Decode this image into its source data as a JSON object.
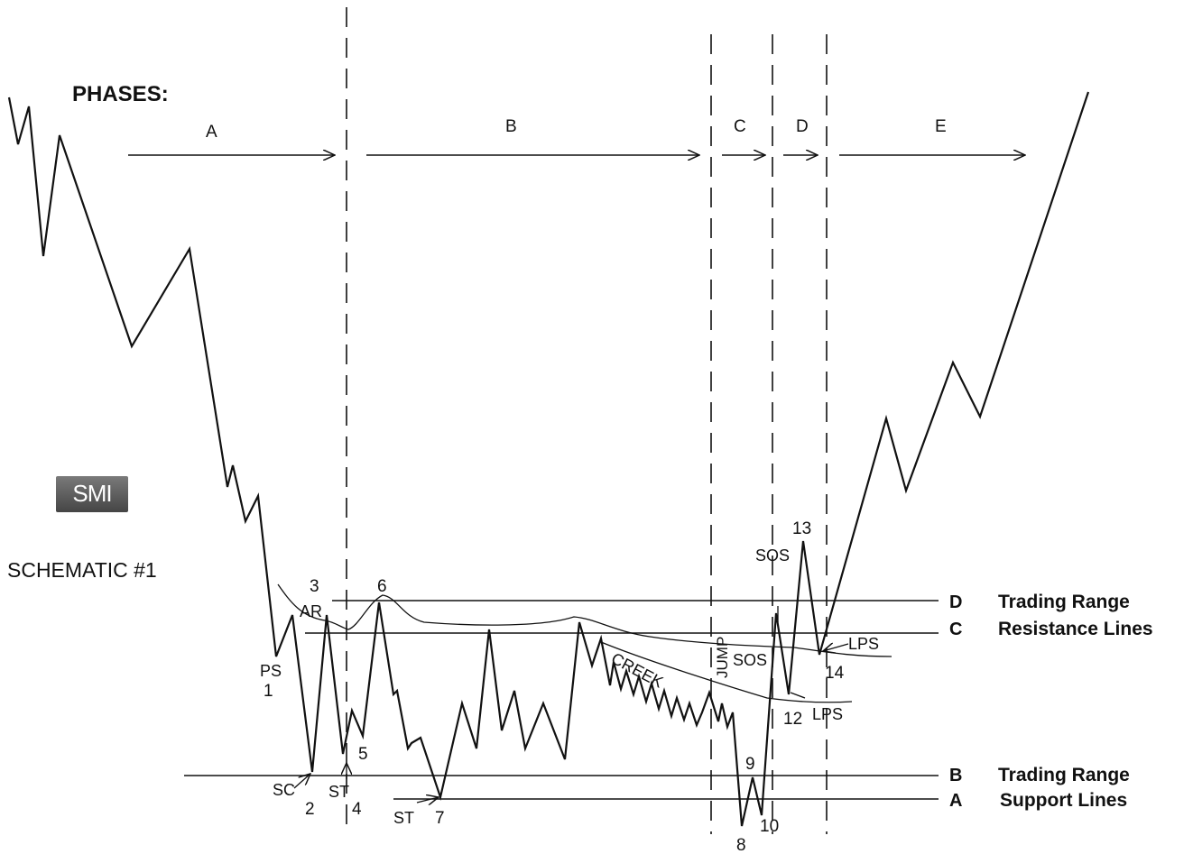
{
  "header": {
    "phases_title": "PHASES:",
    "schematic_title": "SCHEMATIC #1"
  },
  "logo": {
    "text": "SMI"
  },
  "phases": [
    "A",
    "B",
    "C",
    "D",
    "E"
  ],
  "points": {
    "p1": "1",
    "p2": "2",
    "p3": "3",
    "p4": "4",
    "p5": "5",
    "p6": "6",
    "p7": "7",
    "p8": "8",
    "p9": "9",
    "p10": "10",
    "p12": "12",
    "p13": "13",
    "p14": "14"
  },
  "events": {
    "ps": "PS",
    "sc": "SC",
    "ar": "AR",
    "st1": "ST",
    "st2": "ST",
    "sos1": "SOS",
    "sos2": "SOS",
    "lps1": "LPS",
    "lps2": "LPS",
    "jump": "JUMP",
    "creek": "CREEK"
  },
  "lines": [
    {
      "letter": "D",
      "label": "Trading Range"
    },
    {
      "letter": "C",
      "label": "Resistance Lines"
    },
    {
      "letter": "B",
      "label": "Trading Range"
    },
    {
      "letter": "A",
      "label": "Support Lines"
    }
  ],
  "colors": {
    "ink": "#111111"
  }
}
